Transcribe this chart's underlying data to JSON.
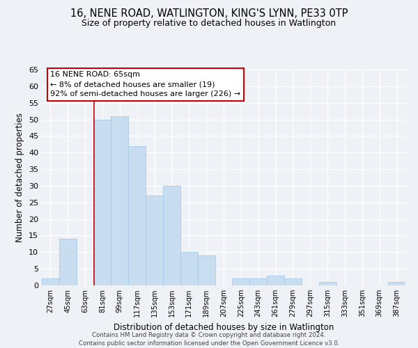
{
  "title": "16, NENE ROAD, WATLINGTON, KING'S LYNN, PE33 0TP",
  "subtitle": "Size of property relative to detached houses in Watlington",
  "xlabel": "Distribution of detached houses by size in Watlington",
  "ylabel": "Number of detached properties",
  "bar_color": "#c8ddf0",
  "bar_edge_color": "#a8c8e8",
  "annotation_box_color": "#ffffff",
  "annotation_box_edge_color": "#cc0000",
  "vertical_line_color": "#cc0000",
  "annotation_line1": "16 NENE ROAD: 65sqm",
  "annotation_line2": "← 8% of detached houses are smaller (19)",
  "annotation_line3": "92% of semi-detached houses are larger (226) →",
  "categories": [
    "27sqm",
    "45sqm",
    "63sqm",
    "81sqm",
    "99sqm",
    "117sqm",
    "135sqm",
    "153sqm",
    "171sqm",
    "189sqm",
    "207sqm",
    "225sqm",
    "243sqm",
    "261sqm",
    "279sqm",
    "297sqm",
    "315sqm",
    "333sqm",
    "351sqm",
    "369sqm",
    "387sqm"
  ],
  "values": [
    2,
    14,
    0,
    50,
    51,
    42,
    27,
    30,
    10,
    9,
    0,
    2,
    2,
    3,
    2,
    0,
    1,
    0,
    0,
    0,
    1
  ],
  "ylim": [
    0,
    65
  ],
  "yticks": [
    0,
    5,
    10,
    15,
    20,
    25,
    30,
    35,
    40,
    45,
    50,
    55,
    60,
    65
  ],
  "footer_line1": "Contains HM Land Registry data © Crown copyright and database right 2024.",
  "footer_line2": "Contains public sector information licensed under the Open Government Licence v3.0.",
  "background_color": "#eef2f7"
}
